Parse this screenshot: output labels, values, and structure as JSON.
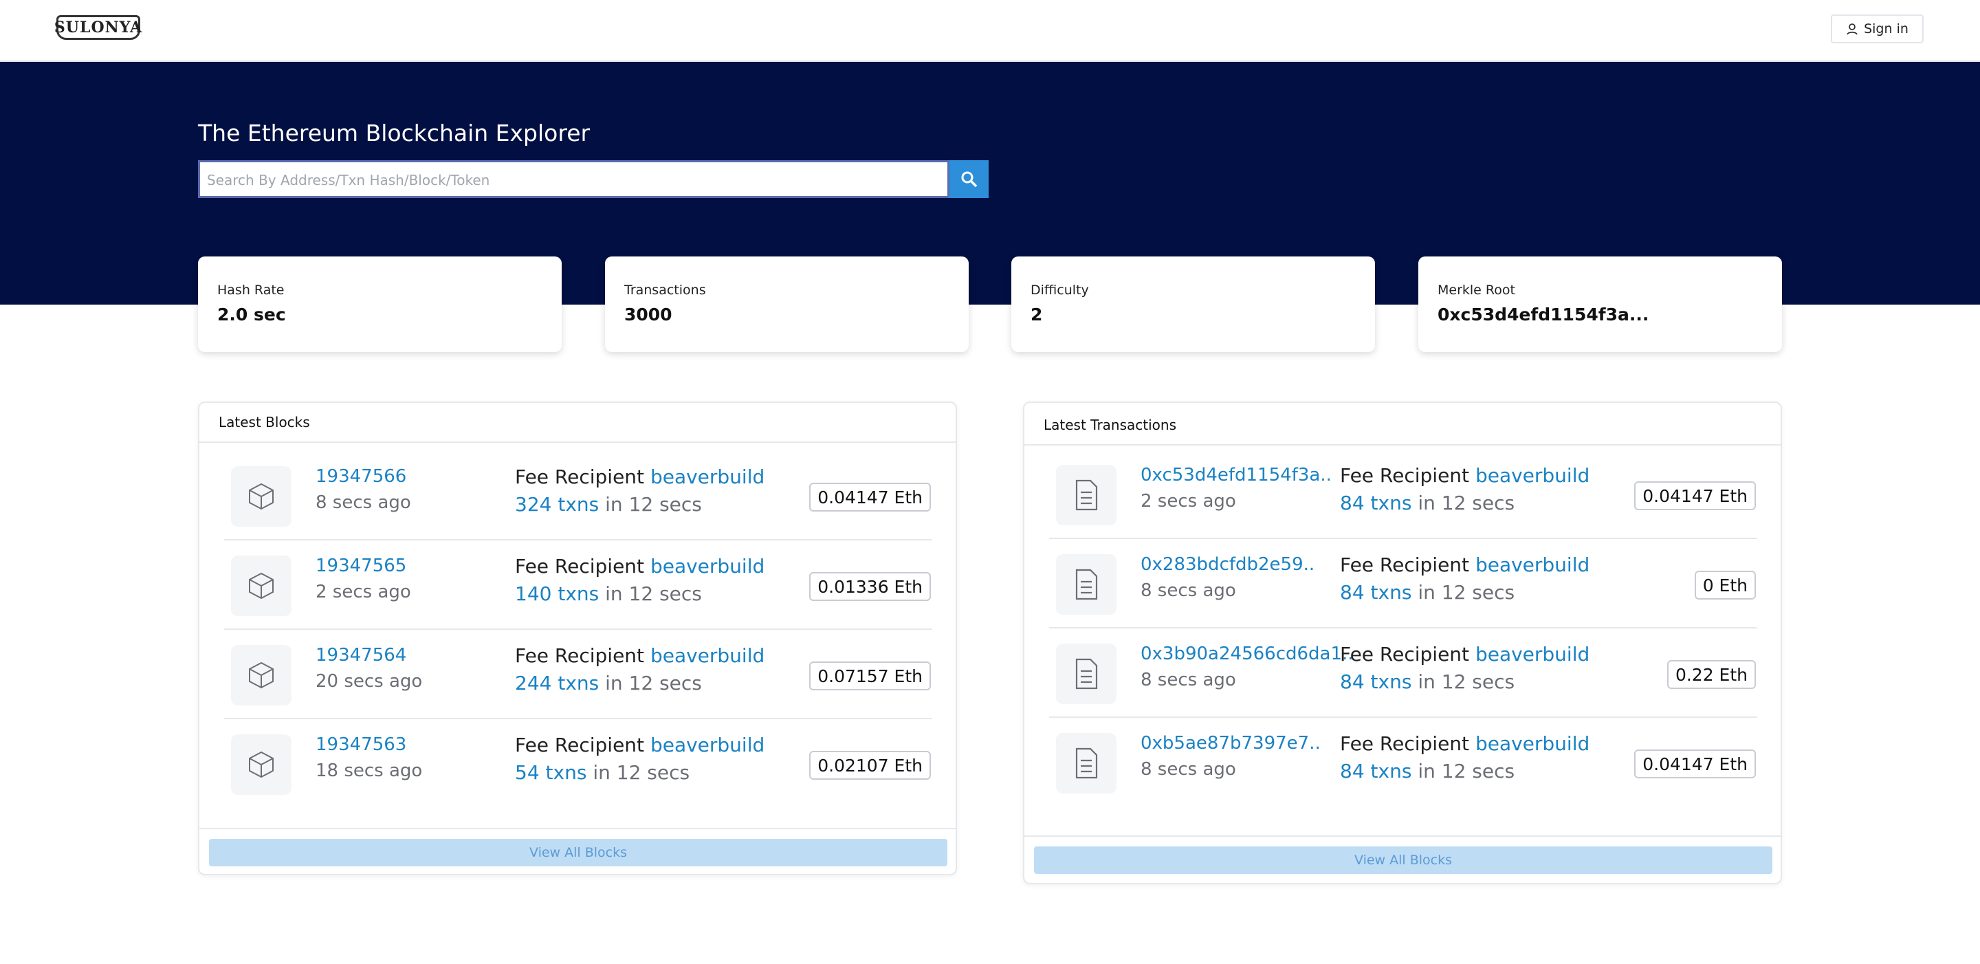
{
  "header": {
    "logo": "SULONYA",
    "sign_in": "Sign in"
  },
  "hero": {
    "title": "The Ethereum Blockchain Explorer",
    "search_placeholder": "Search By Address/Txn Hash/Block/Token"
  },
  "stats": [
    {
      "label": "Hash Rate",
      "value": "2.0 sec"
    },
    {
      "label": "Transactions",
      "value": "3000"
    },
    {
      "label": "Difficulty",
      "value": "2"
    },
    {
      "label": "Merkle Root",
      "value": "0xc53d4efd1154f3a..."
    }
  ],
  "latest_blocks": {
    "title": "Latest Blocks",
    "button": "View All Blocks",
    "rows": [
      {
        "id": "19347566",
        "age": "8 secs ago",
        "fee_label": "Fee Recipient",
        "recipient": "beaverbuild",
        "txns": "324 txns",
        "duration": "in 12 secs",
        "amount": "0.04147 Eth"
      },
      {
        "id": "19347565",
        "age": "2 secs ago",
        "fee_label": "Fee Recipient",
        "recipient": "beaverbuild",
        "txns": "140 txns",
        "duration": "in 12 secs",
        "amount": "0.01336 Eth"
      },
      {
        "id": "19347564",
        "age": "20 secs ago",
        "fee_label": "Fee Recipient",
        "recipient": "beaverbuild",
        "txns": "244 txns",
        "duration": "in 12 secs",
        "amount": "0.07157 Eth"
      },
      {
        "id": "19347563",
        "age": "18 secs ago",
        "fee_label": "Fee Recipient",
        "recipient": "beaverbuild",
        "txns": "54 txns",
        "duration": "in 12 secs",
        "amount": "0.02107 Eth"
      }
    ]
  },
  "latest_transactions": {
    "title": "Latest Transactions",
    "button": "View All Blocks",
    "rows": [
      {
        "id": "0xc53d4efd1154f3a..",
        "age": "2 secs ago",
        "fee_label": "Fee Recipient",
        "recipient": "beaverbuild",
        "txns": "84 txns",
        "duration": "in 12 secs",
        "amount": "0.04147 Eth"
      },
      {
        "id": "0x283bdcfdb2e59..",
        "age": "8 secs ago",
        "fee_label": "Fee Recipient",
        "recipient": "beaverbuild",
        "txns": "84 txns",
        "duration": "in 12 secs",
        "amount": "0 Eth"
      },
      {
        "id": "0x3b90a24566cd6da1..",
        "age": "8 secs ago",
        "fee_label": "Fee Recipient",
        "recipient": "beaverbuild",
        "txns": "84 txns",
        "duration": "in 12 secs",
        "amount": "0.22 Eth"
      },
      {
        "id": "0xb5ae87b7397e7..",
        "age": "8 secs ago",
        "fee_label": "Fee Recipient",
        "recipient": "beaverbuild",
        "txns": "84 txns",
        "duration": "in 12 secs",
        "amount": "0.04147 Eth"
      }
    ]
  }
}
